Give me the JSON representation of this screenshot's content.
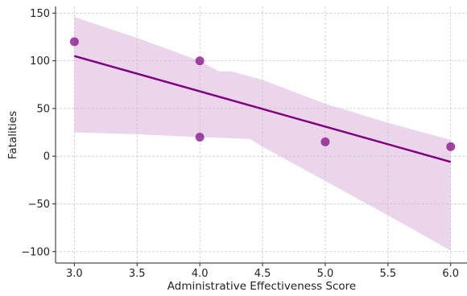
{
  "chart_data": {
    "type": "scatter",
    "title": "",
    "xlabel": "Administrative Effectiveness Score",
    "ylabel": "Fatalities",
    "xlim": [
      2.85,
      6.13
    ],
    "ylim": [
      -112,
      157
    ],
    "xticks": [
      3.0,
      3.5,
      4.0,
      4.5,
      5.0,
      5.5,
      6.0
    ],
    "xtick_labels": [
      "3.0",
      "3.5",
      "4.0",
      "4.5",
      "5.0",
      "5.5",
      "6.0"
    ],
    "yticks": [
      -100,
      -50,
      0,
      50,
      100,
      150
    ],
    "ytick_labels": [
      "−100",
      "−50",
      "0",
      "50",
      "100",
      "150"
    ],
    "grid": true,
    "series": [
      {
        "points": [
          {
            "x": 3.0,
            "y": 120
          },
          {
            "x": 4.0,
            "y": 100
          },
          {
            "x": 4.0,
            "y": 20
          },
          {
            "x": 5.0,
            "y": 15
          },
          {
            "x": 6.0,
            "y": 10
          }
        ],
        "color": "#8b1a8b"
      }
    ],
    "regression_line": {
      "x": [
        3.0,
        6.0
      ],
      "y": [
        105,
        -6
      ],
      "color": "#800080"
    },
    "confidence_band": {
      "color": "#d8b2da",
      "upper": [
        [
          3.0,
          146
        ],
        [
          3.5,
          124
        ],
        [
          4.0,
          100
        ],
        [
          4.15,
          89
        ],
        [
          4.25,
          89
        ],
        [
          4.5,
          80
        ],
        [
          5.0,
          55
        ],
        [
          5.5,
          35
        ],
        [
          6.0,
          17
        ]
      ],
      "lower": [
        [
          3.0,
          25
        ],
        [
          3.5,
          23
        ],
        [
          4.0,
          20
        ],
        [
          4.4,
          18
        ],
        [
          4.5,
          10
        ],
        [
          5.0,
          -26
        ],
        [
          5.5,
          -62
        ],
        [
          6.0,
          -99
        ]
      ]
    }
  }
}
